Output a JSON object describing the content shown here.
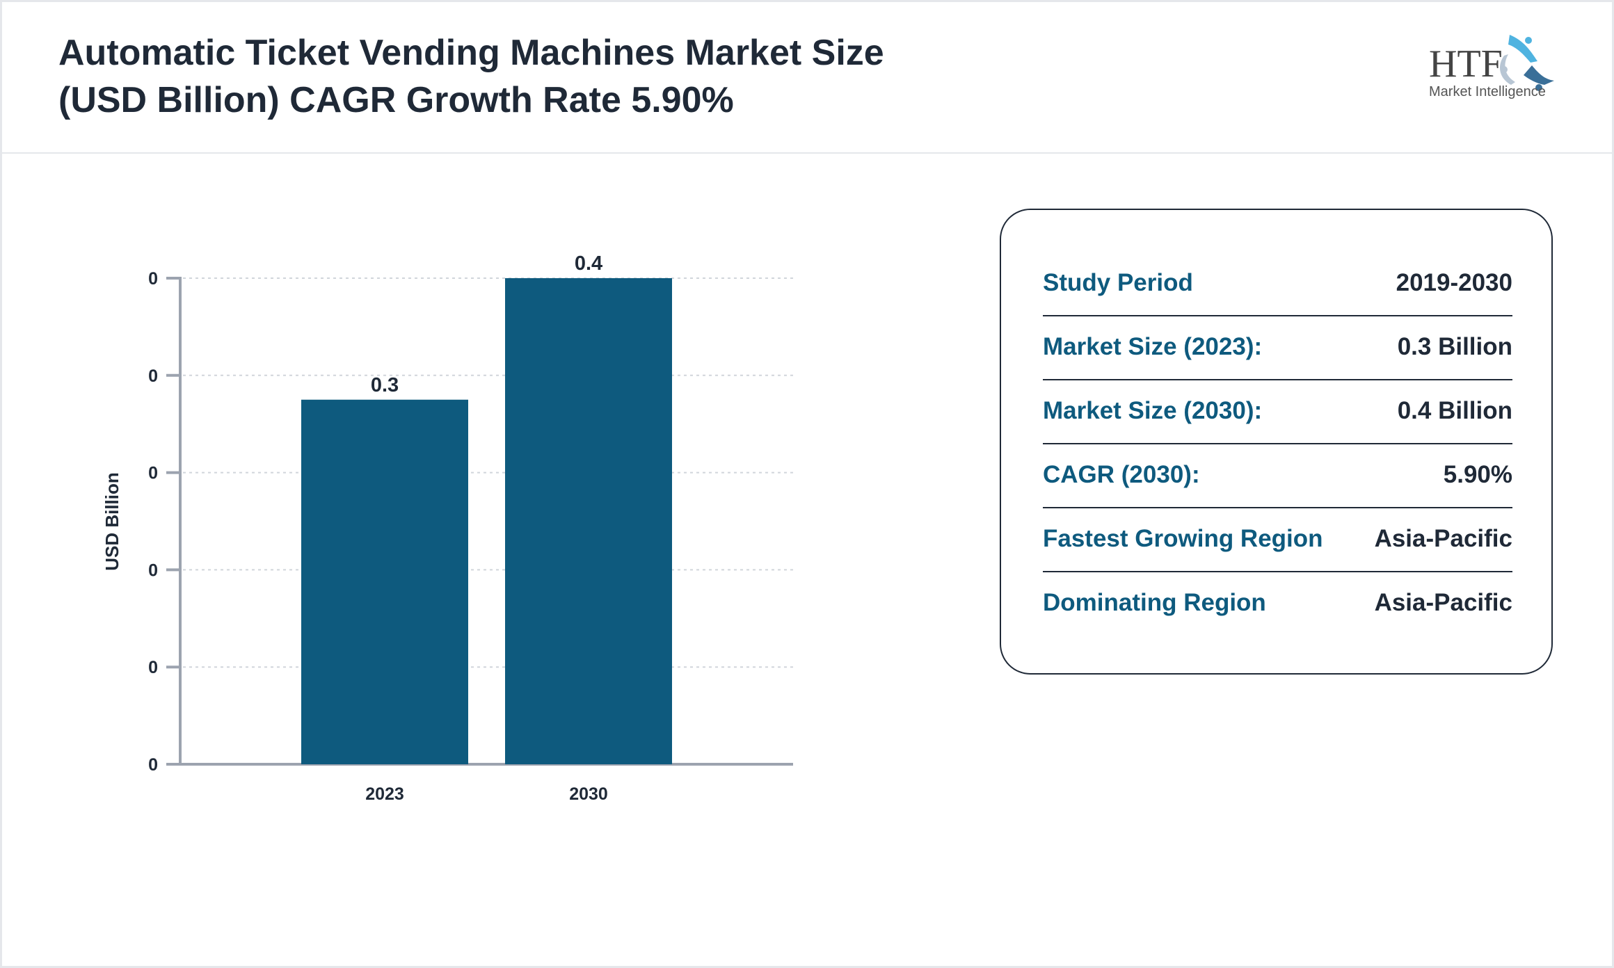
{
  "header": {
    "title_line1": "Automatic Ticket Vending Machines Market Size",
    "title_line2": "(USD Billion) CAGR Growth Rate 5.90%",
    "logo_text": "HTF",
    "logo_subtext": "Market Intelligence"
  },
  "chart_data": {
    "type": "bar",
    "categories": [
      "2023",
      "2030"
    ],
    "values": [
      0.3,
      0.4
    ],
    "data_labels": [
      "0.3",
      "0.4"
    ],
    "title": "",
    "xlabel": "",
    "ylabel": "USD Billion",
    "ylim": [
      0,
      0.4
    ],
    "y_ticks": [
      0,
      0.08,
      0.16,
      0.24,
      0.32,
      0.4
    ],
    "y_tick_labels": [
      "0",
      "0",
      "0",
      "0",
      "0",
      "0"
    ],
    "grid": true,
    "bar_color": "#0e5a7e"
  },
  "info": {
    "rows": [
      {
        "label": "Study Period",
        "value": "2019-2030"
      },
      {
        "label": "Market Size (2023):",
        "value": "0.3 Billion"
      },
      {
        "label": "Market Size (2030):",
        "value": "0.4 Billion"
      },
      {
        "label": "CAGR (2030):",
        "value": "5.90%"
      },
      {
        "label": "Fastest Growing Region",
        "value": "Asia-Pacific"
      },
      {
        "label": "Dominating Region",
        "value": "Asia-Pacific"
      }
    ]
  },
  "colors": {
    "accent": "#0e5a7e",
    "text": "#1f2937",
    "axis": "#9ca3af"
  }
}
